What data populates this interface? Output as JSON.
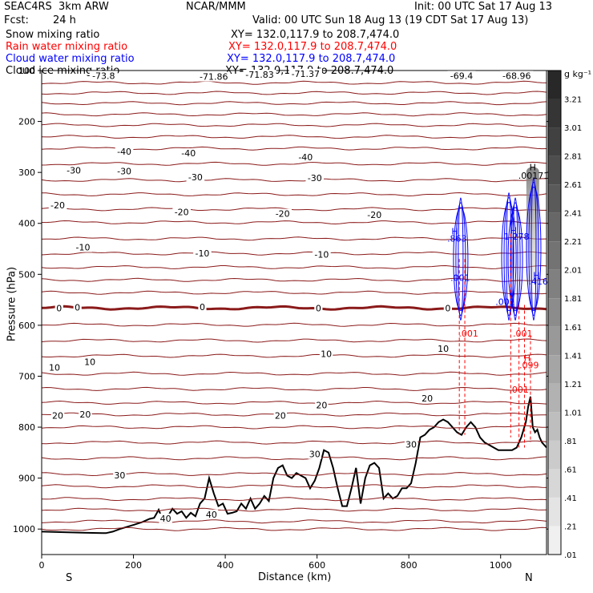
{
  "header": {
    "model": "SEAC4RS  3km ARW",
    "org": "NCAR/MMM",
    "init": "Init: 00 UTC Sat 17 Aug 13",
    "fcst_label": "Fcst:",
    "fcst_value": "24 h",
    "valid": "Valid: 00 UTC Sun 18 Aug 13 (19 CDT Sat 17 Aug 13)"
  },
  "legend": [
    {
      "name": "Snow mixing ratio",
      "color": "#000000",
      "xy": "XY= 132.0,117.9 to 208.7,474.0"
    },
    {
      "name": "Rain water mixing ratio",
      "color": "#ff0000",
      "xy": "XY= 132.0,117.9 to 208.7,474.0"
    },
    {
      "name": "Cloud water mixing ratio",
      "color": "#0000ff",
      "xy": "XY= 132.0,117.9 to 208.7,474.0"
    },
    {
      "name": "Cloud ice mixing ratio",
      "color": "#000000",
      "xy": "XY= 132.0,117.9 to 208.7,474.0"
    }
  ],
  "colorbar": {
    "unit": "g kg⁻¹",
    "ticks": [
      "3.21",
      "3.01",
      "2.81",
      "2.61",
      "2.41",
      "2.21",
      "2.01",
      "1.81",
      "1.61",
      "1.41",
      "1.21",
      "1.01",
      ".81",
      ".61",
      ".41",
      ".21",
      ".01"
    ]
  },
  "chart_data": {
    "type": "line",
    "title": "",
    "xlabel": "Distance (km)",
    "ylabel": "Pressure (hPa)",
    "xlim": [
      0,
      1100
    ],
    "ylim": [
      1050,
      100
    ],
    "x_ticks": [
      0,
      200,
      400,
      600,
      800,
      1000
    ],
    "y_ticks": [
      100,
      200,
      300,
      400,
      500,
      600,
      700,
      800,
      900,
      1000
    ],
    "x_end_labels": {
      "left": "S",
      "right": "N"
    },
    "yscale": "linear",
    "temperature_contours": {
      "color": "#8b1a1a",
      "interval_C": 5,
      "levels_hPa": [
        1000,
        985,
        962,
        941,
        916,
        892,
        861,
        830,
        800,
        775,
        752,
        725,
        695,
        660,
        630,
        599,
        566,
        536,
        511,
        486,
        459,
        430,
        398,
        372,
        343,
        315,
        283,
        253,
        230,
        207,
        186,
        164,
        144,
        124
      ],
      "zero_isotherm_hPa": 566,
      "labels": [
        {
          "text": "-73.8",
          "x": 135,
          "p": 110
        },
        {
          "text": "-71.86",
          "x": 375,
          "p": 112
        },
        {
          "text": "-71.83",
          "x": 475,
          "p": 108
        },
        {
          "text": "-71.37",
          "x": 575,
          "p": 106
        },
        {
          "text": "-69.4",
          "x": 915,
          "p": 110
        },
        {
          "text": "-68.96",
          "x": 1035,
          "p": 110
        },
        {
          "text": "-40",
          "x": 180,
          "p": 259
        },
        {
          "text": "-40",
          "x": 320,
          "p": 262
        },
        {
          "text": "-40",
          "x": 575,
          "p": 270
        },
        {
          "text": "-30",
          "x": 70,
          "p": 296
        },
        {
          "text": "-30",
          "x": 180,
          "p": 297
        },
        {
          "text": "-30",
          "x": 335,
          "p": 309
        },
        {
          "text": "-30",
          "x": 595,
          "p": 311
        },
        {
          "text": "-20",
          "x": 35,
          "p": 364
        },
        {
          "text": "-20",
          "x": 305,
          "p": 378
        },
        {
          "text": "-20",
          "x": 525,
          "p": 381
        },
        {
          "text": "-20",
          "x": 725,
          "p": 383
        },
        {
          "text": "-10",
          "x": 90,
          "p": 447
        },
        {
          "text": "-10",
          "x": 350,
          "p": 459
        },
        {
          "text": "-10",
          "x": 610,
          "p": 461
        },
        {
          "text": "0",
          "x": 38,
          "p": 566
        },
        {
          "text": "0",
          "x": 78,
          "p": 565
        },
        {
          "text": "0",
          "x": 350,
          "p": 564
        },
        {
          "text": "0",
          "x": 603,
          "p": 566
        },
        {
          "text": "0",
          "x": 885,
          "p": 566
        },
        {
          "text": "10",
          "x": 28,
          "p": 683
        },
        {
          "text": "10",
          "x": 105,
          "p": 672
        },
        {
          "text": "10",
          "x": 620,
          "p": 656
        },
        {
          "text": "10",
          "x": 875,
          "p": 646
        },
        {
          "text": "20",
          "x": 35,
          "p": 777
        },
        {
          "text": "20",
          "x": 95,
          "p": 775
        },
        {
          "text": "20",
          "x": 520,
          "p": 777
        },
        {
          "text": "20",
          "x": 610,
          "p": 757
        },
        {
          "text": "20",
          "x": 840,
          "p": 743
        },
        {
          "text": "30",
          "x": 170,
          "p": 894
        },
        {
          "text": "30",
          "x": 595,
          "p": 853
        },
        {
          "text": "30",
          "x": 805,
          "p": 834
        },
        {
          "text": "40",
          "x": 270,
          "p": 979
        },
        {
          "text": "40",
          "x": 370,
          "p": 971
        }
      ]
    },
    "terrain_hPa": {
      "x": [
        0,
        40,
        90,
        140,
        155,
        170,
        200,
        220,
        235,
        245,
        255,
        265,
        275,
        285,
        295,
        305,
        315,
        325,
        335,
        345,
        355,
        365,
        375,
        385,
        395,
        405,
        415,
        425,
        435,
        445,
        455,
        465,
        475,
        485,
        495,
        505,
        515,
        525,
        535,
        545,
        555,
        565,
        575,
        585,
        595,
        605,
        615,
        625,
        635,
        645,
        655,
        665,
        675,
        685,
        695,
        705,
        715,
        725,
        735,
        745,
        755,
        765,
        775,
        785,
        795,
        805,
        815,
        825,
        835,
        845,
        855,
        865,
        875,
        885,
        895,
        905,
        915,
        925,
        935,
        945,
        955,
        965,
        975,
        985,
        995,
        1005,
        1015,
        1025,
        1035,
        1045,
        1055,
        1060,
        1065,
        1070,
        1075,
        1080,
        1085,
        1090,
        1100
      ],
      "p": [
        1005,
        1006,
        1007,
        1008,
        1005,
        1000,
        992,
        986,
        980,
        978,
        962,
        985,
        975,
        960,
        970,
        965,
        978,
        968,
        975,
        950,
        940,
        900,
        930,
        955,
        950,
        970,
        968,
        965,
        950,
        960,
        940,
        960,
        950,
        935,
        945,
        900,
        880,
        875,
        895,
        900,
        890,
        895,
        900,
        920,
        905,
        880,
        845,
        850,
        880,
        920,
        955,
        955,
        920,
        880,
        950,
        900,
        875,
        870,
        880,
        940,
        930,
        940,
        935,
        920,
        920,
        910,
        870,
        820,
        815,
        805,
        800,
        790,
        785,
        790,
        800,
        810,
        815,
        800,
        790,
        800,
        820,
        830,
        835,
        840,
        845,
        845,
        845,
        845,
        840,
        820,
        790,
        760,
        740,
        800,
        810,
        805,
        820,
        830,
        840
      ],
      "base_hPa": 1050
    },
    "hydrometeor_labels": [
      {
        "text": "H",
        "x": 1070,
        "p": 296,
        "color": "#000000"
      },
      {
        "text": ".00171",
        "x": 1072,
        "p": 312,
        "color": "#000000"
      },
      {
        "text": "H",
        "x": 900,
        "p": 422,
        "color": "#0000ff"
      },
      {
        "text": ".863",
        "x": 905,
        "p": 436,
        "color": "#0000ff"
      },
      {
        "text": "H",
        "x": 1028,
        "p": 420,
        "color": "#0000ff"
      },
      {
        "text": "1.278",
        "x": 1035,
        "p": 432,
        "color": "#0000ff"
      },
      {
        "text": "H",
        "x": 1078,
        "p": 508,
        "color": "#0000ff"
      },
      {
        "text": ".416",
        "x": 1082,
        "p": 520,
        "color": "#0000ff"
      },
      {
        "text": ".001",
        "x": 912,
        "p": 513,
        "color": "#0000ff"
      },
      {
        "text": ".001",
        "x": 1010,
        "p": 560,
        "color": "#0000ff"
      },
      {
        "text": ".001",
        "x": 930,
        "p": 622,
        "color": "#ff0000"
      },
      {
        "text": ".001",
        "x": 1048,
        "p": 622,
        "color": "#ff0000"
      },
      {
        "text": "H",
        "x": 1058,
        "p": 670,
        "color": "#ff0000"
      },
      {
        "text": ".099",
        "x": 1062,
        "p": 684,
        "color": "#ff0000"
      },
      {
        "text": ".001",
        "x": 1040,
        "p": 732,
        "color": "#ff0000"
      }
    ],
    "cloud_ice_shading": {
      "x": 1070,
      "p_top": 290,
      "p_bottom": 520,
      "max_g_kg": 3.21
    }
  }
}
